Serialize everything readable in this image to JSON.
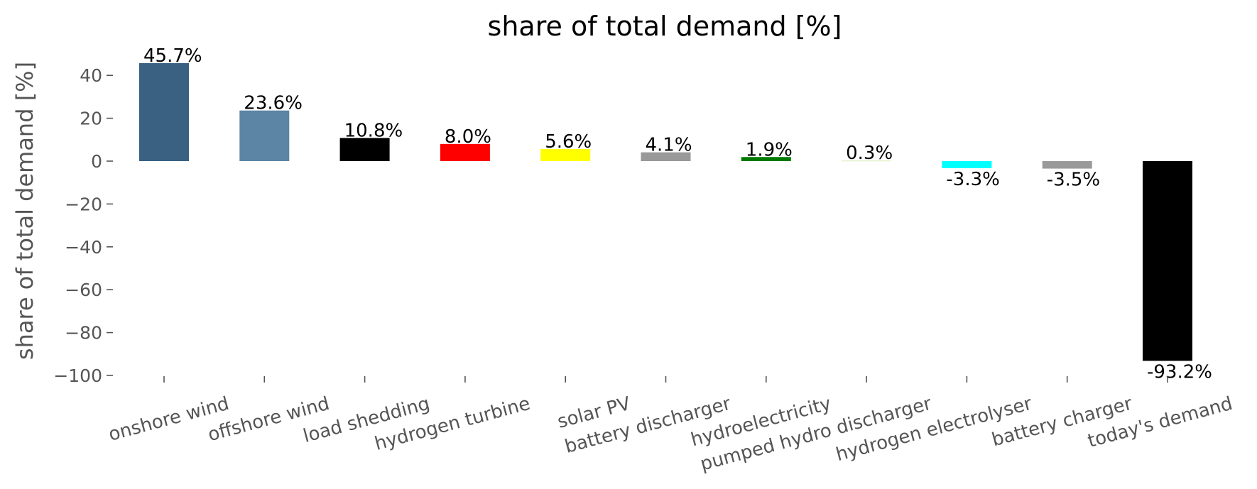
{
  "chart_data": {
    "type": "bar",
    "title": "share of total demand [%]",
    "ylabel": "share of total demand [%]",
    "xlabel": "",
    "ylim": [
      -100,
      48
    ],
    "yticks": [
      40,
      20,
      0,
      -20,
      -40,
      -60,
      -80,
      -100
    ],
    "ytick_labels": [
      "40",
      "20",
      "0",
      "−20",
      "−40",
      "−60",
      "−80",
      "−100"
    ],
    "grid": false,
    "categories": [
      "onshore wind",
      "offshore wind",
      "load shedding",
      "hydrogen turbine",
      "solar PV",
      "battery discharger",
      "hydroelectricity",
      "pumped hydro discharger",
      "hydrogen electrolyser",
      "battery charger",
      "today's demand"
    ],
    "values": [
      45.7,
      23.6,
      10.8,
      8.0,
      5.6,
      4.1,
      1.9,
      0.3,
      -3.3,
      -3.5,
      -93.2
    ],
    "data_labels": [
      "45.7%",
      "23.6%",
      "10.8%",
      "8.0%",
      "5.6%",
      "4.1%",
      "1.9%",
      "0.3%",
      "-3.3%",
      "-3.5%",
      "-93.2%"
    ],
    "colors": [
      "#3a6182",
      "#5c84a4",
      "#000000",
      "#ff0000",
      "#ffff00",
      "#999999",
      "#007a00",
      "#e0f0c0",
      "#00ffff",
      "#999999",
      "#000000"
    ]
  }
}
